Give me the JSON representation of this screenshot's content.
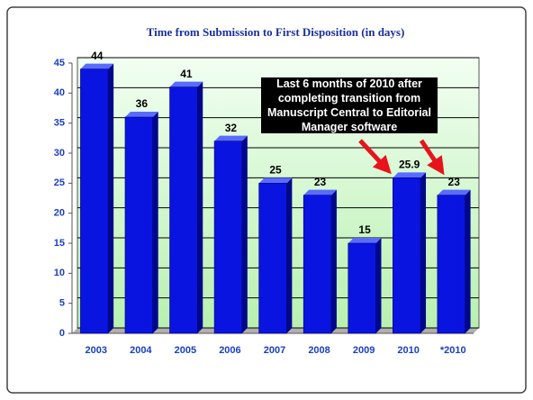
{
  "chart_data": {
    "type": "bar",
    "title": "Time from Submission to First Disposition (in days)",
    "categories": [
      "2003",
      "2004",
      "2005",
      "2006",
      "2007",
      "2008",
      "2009",
      "2010",
      "*2010"
    ],
    "values": [
      44,
      36,
      41,
      32,
      25,
      23,
      15,
      25.9,
      23
    ],
    "color": "#0a14e0",
    "ylim": [
      0,
      45
    ],
    "yticks": [
      0,
      5,
      10,
      15,
      20,
      25,
      30,
      35,
      40,
      45
    ],
    "grid": true,
    "annotation": "Last 6 months of 2010 after completing transition from Manuscript Central to Editorial Manager software"
  }
}
